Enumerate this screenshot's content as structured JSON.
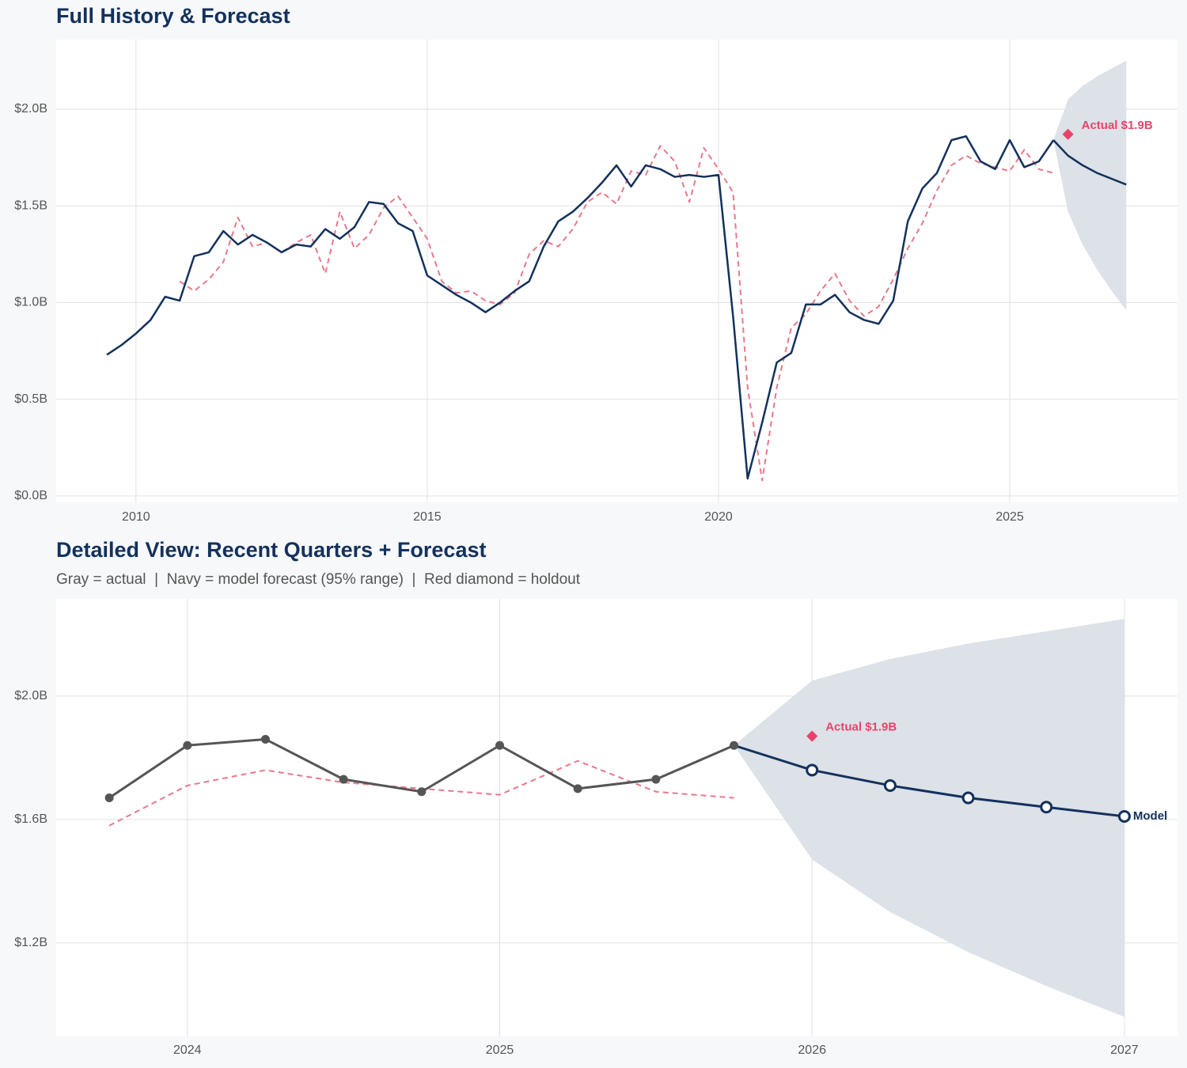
{
  "chart_data": [
    {
      "type": "line",
      "title": "Full History & Forecast",
      "xlim": [
        2008.63,
        2027.88
      ],
      "xticks": [
        2010,
        2015,
        2020,
        2025
      ],
      "ylim": [
        -0.033,
        2.36
      ],
      "yticks": [
        {
          "value": 0,
          "label": "$0.0B"
        },
        {
          "value": 0.5,
          "label": "$0.5B"
        },
        {
          "value": 1,
          "label": "$1.0B"
        },
        {
          "value": 1.5,
          "label": "$1.5B"
        },
        {
          "value": 2,
          "label": "$2.0B"
        }
      ],
      "grid": true,
      "band": {
        "color": "#dde1e8",
        "x": [
          2025.75,
          2026,
          2026.25,
          2026.5,
          2026.75,
          2027
        ],
        "lower": [
          1.84,
          1.47,
          1.3,
          1.17,
          1.06,
          0.96
        ],
        "upper": [
          1.84,
          2.05,
          2.12,
          2.17,
          2.21,
          2.25
        ]
      },
      "series": [
        {
          "color": "#e8788a",
          "dash": true,
          "width": 2,
          "markers": "none",
          "x": [
            2010.75,
            2011,
            2011.25,
            2011.5,
            2011.75,
            2012,
            2012.25,
            2012.5,
            2012.75,
            2013,
            2013.25,
            2013.5,
            2013.75,
            2014,
            2014.25,
            2014.5,
            2014.75,
            2015,
            2015.25,
            2015.5,
            2015.75,
            2016,
            2016.25,
            2016.5,
            2016.75,
            2017,
            2017.25,
            2017.5,
            2017.75,
            2018,
            2018.25,
            2018.5,
            2018.75,
            2019,
            2019.25,
            2019.5,
            2019.75,
            2020,
            2020.25,
            2020.5,
            2020.75,
            2021,
            2021.25,
            2021.5,
            2021.75,
            2022,
            2022.25,
            2022.5,
            2022.75,
            2023,
            2023.25,
            2023.5,
            2023.75,
            2024,
            2024.25,
            2024.5,
            2024.75,
            2025,
            2025.25,
            2025.5,
            2025.75
          ],
          "values": [
            1.11,
            1.06,
            1.12,
            1.21,
            1.44,
            1.29,
            1.31,
            1.26,
            1.31,
            1.35,
            1.15,
            1.47,
            1.28,
            1.35,
            1.49,
            1.55,
            1.44,
            1.33,
            1.11,
            1.05,
            1.06,
            1.01,
            0.99,
            1.05,
            1.25,
            1.32,
            1.29,
            1.38,
            1.52,
            1.57,
            1.51,
            1.68,
            1.66,
            1.81,
            1.73,
            1.52,
            1.8,
            1.69,
            1.57,
            0.56,
            0.08,
            0.56,
            0.87,
            0.94,
            1.06,
            1.15,
            1.01,
            0.93,
            0.98,
            1.12,
            1.28,
            1.41,
            1.58,
            1.71,
            1.76,
            1.72,
            1.7,
            1.68,
            1.79,
            1.69,
            1.67
          ]
        },
        {
          "color": "#13315c",
          "dash": false,
          "width": 2.5,
          "markers": "none",
          "x": [
            2009.5,
            2009.75,
            2010,
            2010.25,
            2010.5,
            2010.75,
            2011,
            2011.25,
            2011.5,
            2011.75,
            2012,
            2012.25,
            2012.5,
            2012.75,
            2013,
            2013.25,
            2013.5,
            2013.75,
            2014,
            2014.25,
            2014.5,
            2014.75,
            2015,
            2015.25,
            2015.5,
            2015.75,
            2016,
            2016.25,
            2016.5,
            2016.75,
            2017,
            2017.25,
            2017.5,
            2017.75,
            2018,
            2018.25,
            2018.5,
            2018.75,
            2019,
            2019.25,
            2019.5,
            2019.75,
            2020,
            2020.25,
            2020.5,
            2020.75,
            2021,
            2021.25,
            2021.5,
            2021.75,
            2022,
            2022.25,
            2022.5,
            2022.75,
            2023,
            2023.25,
            2023.5,
            2023.75,
            2024,
            2024.25,
            2024.5,
            2024.75,
            2025,
            2025.25,
            2025.5,
            2025.75
          ],
          "values": [
            0.73,
            0.78,
            0.84,
            0.91,
            1.03,
            1.01,
            1.24,
            1.26,
            1.37,
            1.3,
            1.35,
            1.31,
            1.26,
            1.3,
            1.29,
            1.38,
            1.33,
            1.39,
            1.52,
            1.51,
            1.41,
            1.37,
            1.14,
            1.09,
            1.04,
            1.0,
            0.95,
            1.0,
            1.06,
            1.11,
            1.29,
            1.42,
            1.47,
            1.54,
            1.62,
            1.71,
            1.6,
            1.71,
            1.69,
            1.65,
            1.66,
            1.65,
            1.66,
            0.93,
            0.09,
            0.38,
            0.69,
            0.74,
            0.99,
            0.99,
            1.04,
            0.95,
            0.91,
            0.89,
            1.01,
            1.42,
            1.59,
            1.67,
            1.84,
            1.86,
            1.73,
            1.69,
            1.84,
            1.7,
            1.73,
            1.84
          ]
        },
        {
          "color": "#13315c",
          "dash": false,
          "width": 2.5,
          "markers": "none",
          "x": [
            2025.75,
            2026,
            2026.25,
            2026.5,
            2026.75,
            2027
          ],
          "values": [
            1.84,
            1.76,
            1.71,
            1.67,
            1.64,
            1.61
          ]
        }
      ],
      "holdout": {
        "x": 2026,
        "value": 1.87,
        "label": "Actual $1.9B",
        "color": "#e8446a"
      }
    },
    {
      "type": "line",
      "title": "Detailed View: Recent Quarters + Forecast",
      "subtitle": "Gray = actual  |  Navy = model forecast (95% range)  |  Red diamond = holdout",
      "xlim": [
        2023.58,
        2027.17
      ],
      "xticks": [
        2024,
        2025,
        2026,
        2027
      ],
      "ylim": [
        0.897,
        2.315
      ],
      "yticks": [
        {
          "value": 1.2,
          "label": "$1.2B"
        },
        {
          "value": 1.6,
          "label": "$1.6B"
        },
        {
          "value": 2,
          "label": "$2.0B"
        }
      ],
      "grid": true,
      "band": {
        "color": "#dde1e8",
        "x": [
          2025.75,
          2026,
          2026.25,
          2026.5,
          2026.75,
          2027
        ],
        "lower": [
          1.84,
          1.47,
          1.3,
          1.17,
          1.06,
          0.96
        ],
        "upper": [
          1.84,
          2.05,
          2.12,
          2.17,
          2.21,
          2.25
        ]
      },
      "series": [
        {
          "color": "#e8788a",
          "dash": true,
          "width": 2,
          "markers": "none",
          "x": [
            2023.75,
            2024,
            2024.25,
            2024.5,
            2024.75,
            2025,
            2025.25,
            2025.5,
            2025.75
          ],
          "values": [
            1.58,
            1.71,
            1.76,
            1.72,
            1.7,
            1.68,
            1.79,
            1.69,
            1.67
          ]
        },
        {
          "color": "#555555",
          "dash": false,
          "width": 3,
          "markers": "filled",
          "x": [
            2023.75,
            2024,
            2024.25,
            2024.5,
            2024.75,
            2025,
            2025.25,
            2025.5,
            2025.75
          ],
          "values": [
            1.67,
            1.84,
            1.86,
            1.73,
            1.69,
            1.84,
            1.7,
            1.73,
            1.84
          ]
        },
        {
          "color": "#13315c",
          "dash": false,
          "width": 3,
          "markers": "open",
          "x": [
            2025.75,
            2026,
            2026.25,
            2026.5,
            2026.75,
            2027
          ],
          "values": [
            1.84,
            1.76,
            1.71,
            1.67,
            1.64,
            1.61
          ]
        }
      ],
      "holdout": {
        "x": 2026,
        "value": 1.87,
        "label": "Actual $1.9B",
        "color": "#e8446a"
      },
      "end_label": "Model"
    }
  ]
}
